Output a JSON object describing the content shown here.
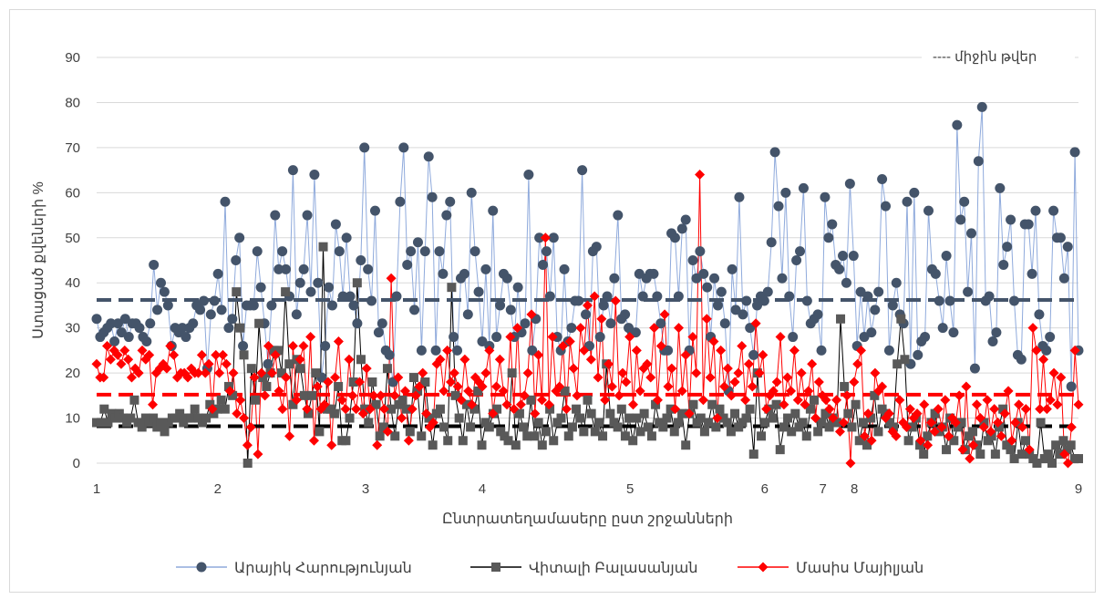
{
  "chart_data": {
    "type": "line",
    "title": "",
    "xlabel": "Ընտրատեղամասերը ըստ շրջանների",
    "ylabel": "Ստացած քվեների %",
    "ylim": [
      0,
      90
    ],
    "yticks": [
      0,
      10,
      20,
      30,
      40,
      50,
      60,
      70,
      80,
      90
    ],
    "region_labels": [
      "1",
      "2",
      "3",
      "4",
      "5",
      "6",
      "7",
      "8",
      "9"
    ],
    "region_positions": [
      1,
      28,
      61,
      87,
      120,
      150,
      163,
      170,
      220
    ],
    "x_range": [
      1,
      220
    ],
    "legend_position": "bottom",
    "mean_note": "---- միջին թվեր",
    "series": [
      {
        "name": "Արայիկ Հարությունյան",
        "color": "#8FAADC",
        "marker": "circle",
        "marker_color": "#44546A",
        "mean": 36.2,
        "values": [
          32,
          28,
          29,
          30,
          31,
          27,
          31,
          29,
          32,
          28,
          31,
          31,
          30,
          28,
          27,
          31,
          44,
          34,
          40,
          38,
          35,
          26,
          30,
          29,
          30,
          28,
          30,
          31,
          35,
          34,
          36,
          21,
          33,
          36,
          42,
          34,
          58,
          30,
          32,
          45,
          50,
          26,
          35,
          35,
          35,
          47,
          39,
          31,
          22,
          35,
          55,
          43,
          47,
          43,
          37,
          65,
          33,
          40,
          43,
          55,
          38,
          64,
          40,
          19,
          26,
          39,
          35,
          53,
          47,
          37,
          50,
          37,
          35,
          31,
          45,
          70,
          43,
          36,
          56,
          29,
          31,
          25,
          24,
          18,
          37,
          58,
          70,
          44,
          47,
          34,
          49,
          25,
          47,
          68,
          59,
          25,
          47,
          42,
          55,
          58,
          28,
          25,
          41,
          42,
          33,
          60,
          47,
          38,
          27,
          43,
          26,
          56,
          28,
          35,
          42,
          41,
          34,
          28,
          39,
          29,
          31,
          64,
          25,
          32,
          50,
          44,
          47,
          37,
          50,
          28,
          25,
          43,
          27,
          30,
          36,
          36,
          65,
          33,
          26,
          47,
          48,
          28,
          35,
          37,
          31,
          41,
          55,
          32,
          33,
          30,
          29,
          29,
          42,
          37,
          41,
          42,
          42,
          37,
          31,
          25,
          25,
          51,
          50,
          37,
          52,
          54,
          25,
          45,
          41,
          47,
          42,
          39,
          28,
          41,
          35,
          38,
          31,
          16,
          43,
          34,
          59,
          33,
          36,
          30,
          24,
          35,
          37,
          36,
          38,
          49,
          69,
          57,
          41,
          60,
          37,
          28,
          45,
          47,
          61,
          36,
          31,
          32,
          33,
          25,
          59,
          50,
          53,
          44,
          43,
          46,
          40,
          62,
          46,
          26,
          38,
          28,
          37,
          29,
          34,
          38,
          63,
          57,
          25,
          35,
          40,
          33,
          31,
          58,
          22,
          60,
          24,
          27,
          28,
          56,
          43,
          42,
          36,
          30,
          46,
          36,
          29,
          75,
          54,
          58,
          38,
          51,
          21,
          67,
          79,
          36,
          37,
          27,
          29,
          61,
          44,
          48,
          54,
          36,
          24,
          23,
          53,
          53,
          42,
          56,
          33,
          26,
          25,
          28,
          56,
          50,
          50,
          41,
          48,
          17,
          69,
          25
        ]
      },
      {
        "name": "Վիտալի Բալասանյան",
        "color": "#000000",
        "marker": "square",
        "marker_color": "#595959",
        "mean": 8.2,
        "values": [
          9,
          9,
          12,
          9,
          11,
          10,
          11,
          10,
          9,
          10,
          14,
          9,
          8,
          10,
          9,
          10,
          8,
          9,
          7,
          9,
          10,
          10,
          11,
          9,
          10,
          10,
          12,
          10,
          9,
          10,
          13,
          11,
          12,
          14,
          12,
          17,
          15,
          38,
          30,
          24,
          0,
          21,
          14,
          31,
          19,
          17,
          20,
          25,
          25,
          20,
          38,
          22,
          13,
          23,
          21,
          15,
          11,
          15,
          20,
          7,
          48,
          12,
          12,
          11,
          17,
          5,
          5,
          10,
          18,
          40,
          23,
          12,
          9,
          18,
          13,
          6,
          8,
          21,
          12,
          6,
          13,
          14,
          12,
          7,
          19,
          16,
          6,
          18,
          10,
          4,
          11,
          12,
          8,
          5,
          39,
          15,
          10,
          5,
          13,
          8,
          12,
          16,
          4,
          9,
          8,
          11,
          12,
          7,
          6,
          5,
          20,
          4,
          11,
          8,
          6,
          14,
          6,
          9,
          4,
          7,
          12,
          5,
          9,
          10,
          16,
          6,
          8,
          12,
          10,
          7,
          14,
          11,
          7,
          9,
          6,
          22,
          11,
          9,
          8,
          12,
          6,
          10,
          5,
          10,
          7,
          11,
          8,
          6,
          13,
          9,
          8,
          10,
          12,
          7,
          9,
          11,
          4,
          11,
          13,
          9,
          10,
          7,
          9,
          13,
          8,
          12,
          10,
          9,
          7,
          11,
          8,
          9,
          10,
          12,
          2,
          20,
          6,
          9,
          12,
          10,
          13,
          3,
          8,
          10,
          7,
          11,
          8,
          9,
          6,
          12,
          14,
          7,
          9,
          11,
          8,
          10,
          9,
          32,
          17,
          11,
          8,
          13,
          5,
          9,
          4,
          10,
          15,
          7,
          12,
          11,
          9,
          8,
          22,
          32,
          23,
          5,
          8,
          10,
          4,
          2,
          6,
          9,
          11,
          7,
          8,
          3,
          10,
          5,
          8,
          9,
          3,
          6,
          7,
          4,
          2,
          9,
          5,
          6,
          2,
          8,
          12,
          4,
          3,
          1,
          9,
          2,
          5,
          2,
          1,
          0,
          9,
          1,
          2,
          0,
          4,
          2,
          5,
          3,
          4,
          1,
          1
        ]
      },
      {
        "name": "Մասիս Մայիլյան",
        "color": "#FF0000",
        "marker": "diamond",
        "marker_color": "#FF0000",
        "mean": 15.2,
        "values": [
          22,
          19,
          19,
          26,
          23,
          25,
          24,
          22,
          25,
          23,
          19,
          21,
          20,
          25,
          23,
          24,
          13,
          20,
          21,
          22,
          21,
          26,
          24,
          19,
          20,
          20,
          19,
          21,
          20,
          20,
          24,
          20,
          22,
          12,
          24,
          20,
          24,
          22,
          16,
          20,
          11,
          14,
          10,
          4,
          8,
          19,
          2,
          20,
          15,
          26,
          20,
          24,
          16,
          12,
          19,
          6,
          26,
          14,
          23,
          26,
          12,
          28,
          5,
          17,
          12,
          13,
          18,
          4,
          19,
          27,
          14,
          12,
          23,
          15,
          12,
          18,
          11,
          21,
          12,
          15,
          4,
          15,
          12,
          7,
          41,
          15,
          19,
          10,
          16,
          5,
          12,
          15,
          17,
          20,
          11,
          8,
          9,
          22,
          23,
          16,
          25,
          18,
          20,
          17,
          14,
          23,
          16,
          13,
          19,
          18,
          17,
          20,
          25,
          11,
          17,
          23,
          16,
          13,
          28,
          12,
          30,
          13,
          15,
          20,
          33,
          11,
          24,
          14,
          50,
          13,
          28,
          16,
          17,
          26,
          12,
          27,
          21,
          15,
          30,
          25,
          35,
          23,
          37,
          19,
          32,
          14,
          22,
          17,
          36,
          15,
          20,
          18,
          28,
          13,
          25,
          16,
          21,
          22,
          19,
          30,
          14,
          26,
          33,
          17,
          21,
          12,
          30,
          16,
          24,
          11,
          28,
          20,
          64,
          14,
          32,
          19,
          27,
          10,
          25,
          17,
          21,
          15,
          18,
          20,
          26,
          14,
          22,
          17,
          31,
          20,
          24,
          12,
          15,
          16,
          18,
          28,
          13,
          19,
          16,
          25,
          14,
          20,
          13,
          16,
          22,
          10,
          18,
          15,
          14,
          12,
          10,
          14,
          7,
          9,
          15,
          0,
          18,
          22,
          25,
          6,
          11,
          5,
          20,
          16,
          17,
          10,
          11,
          7,
          6,
          14,
          9,
          8,
          12,
          10,
          11,
          5,
          13,
          4,
          9,
          7,
          12,
          8,
          14,
          6,
          10,
          9,
          15,
          3,
          17,
          1,
          4,
          13,
          10,
          8,
          14,
          7,
          12,
          9,
          6,
          11,
          16,
          5,
          9,
          13,
          8,
          12,
          3,
          30,
          25,
          12,
          23,
          12,
          14,
          20,
          13,
          19,
          2,
          0,
          8,
          25,
          13
        ]
      }
    ]
  }
}
